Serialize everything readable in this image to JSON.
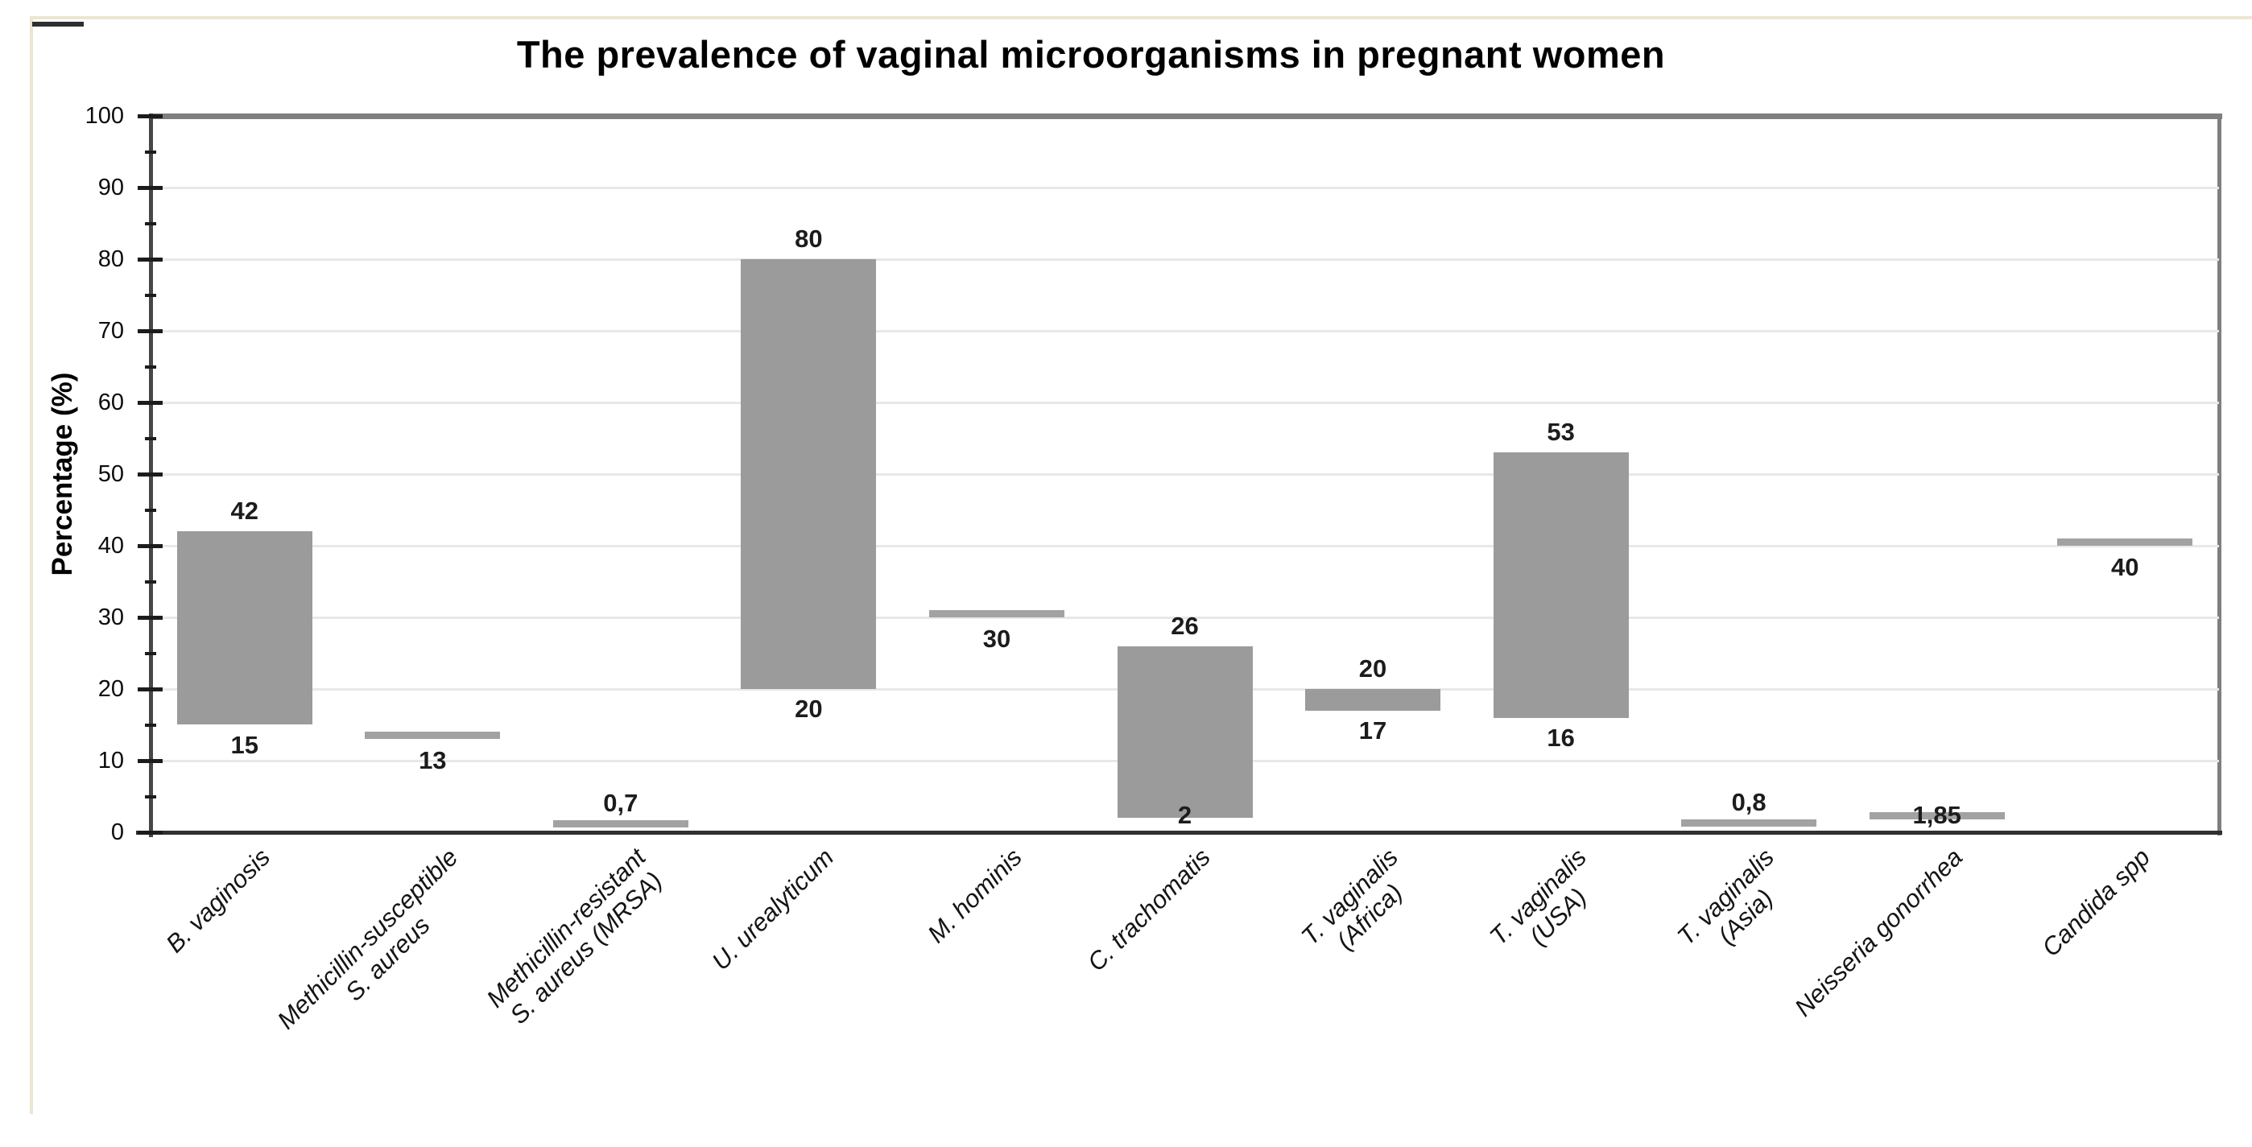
{
  "page": {
    "background_color": "#ffffff",
    "frame_color": "#ece6d1"
  },
  "chart_data": {
    "type": "bar",
    "subtype": "floating-range-bar",
    "title": "The prevalence of vaginal microorganisms in pregnant women",
    "ylabel": "Percentage (%)",
    "xlabel": "",
    "ylim": [
      0,
      100
    ],
    "ytick_interval": 10,
    "yminor_tick_interval": 5,
    "ytick_labels": [
      "0",
      "10",
      "20",
      "30",
      "40",
      "50",
      "60",
      "70",
      "80",
      "90",
      "100"
    ],
    "grid": true,
    "legend": "none",
    "bar_color": "#9b9b9b",
    "single_value_bar_color": "#a2a2a2",
    "decimal_separator": ",",
    "categories": [
      {
        "name": "B. vaginosis",
        "lines": [
          "B. vaginosis"
        ],
        "min": 15,
        "max": 42,
        "min_label": "15",
        "max_label": "42"
      },
      {
        "name": "Methicillin-susceptible S. aureus",
        "lines": [
          "Methicillin-susceptible",
          "S. aureus"
        ],
        "value": 13,
        "value_label": "13",
        "label_pos": "below"
      },
      {
        "name": "Methicillin-resistant S. aureus (MRSA)",
        "lines": [
          "Methicillin-resistant",
          "S. aureus (MRSA)"
        ],
        "value": 0.7,
        "value_label": "0,7",
        "label_pos": "above"
      },
      {
        "name": "U. urealyticum",
        "lines": [
          "U. urealyticum"
        ],
        "min": 20,
        "max": 80,
        "min_label": "20",
        "max_label": "80"
      },
      {
        "name": "M. hominis",
        "lines": [
          "M. hominis"
        ],
        "value": 30,
        "value_label": "30",
        "label_pos": "below"
      },
      {
        "name": "C. trachomatis",
        "lines": [
          "C. trachomatis"
        ],
        "min": 2,
        "max": 26,
        "min_label": "2",
        "max_label": "26"
      },
      {
        "name": "T. vaginalis (Africa)",
        "lines": [
          "T. vaginalis",
          "(Africa)"
        ],
        "min": 17,
        "max": 20,
        "min_label": "17",
        "max_label": "20"
      },
      {
        "name": "T. vaginalis (USA)",
        "lines": [
          "T. vaginalis",
          "(USA)"
        ],
        "min": 16,
        "max": 53,
        "min_label": "16",
        "max_label": "53"
      },
      {
        "name": "T. vaginalis (Asia)",
        "lines": [
          "T. vaginalis",
          "(Asia)"
        ],
        "value": 0.8,
        "value_label": "0,8",
        "label_pos": "above"
      },
      {
        "name": "Neisseria gonorrhea",
        "lines": [
          "Neisseria gonorrhea"
        ],
        "value": 1.85,
        "value_label": "1,85",
        "label_pos": "on"
      },
      {
        "name": "Candida spp",
        "lines": [
          "Candida spp"
        ],
        "value": 40,
        "value_label": "40",
        "label_pos": "below"
      }
    ]
  }
}
